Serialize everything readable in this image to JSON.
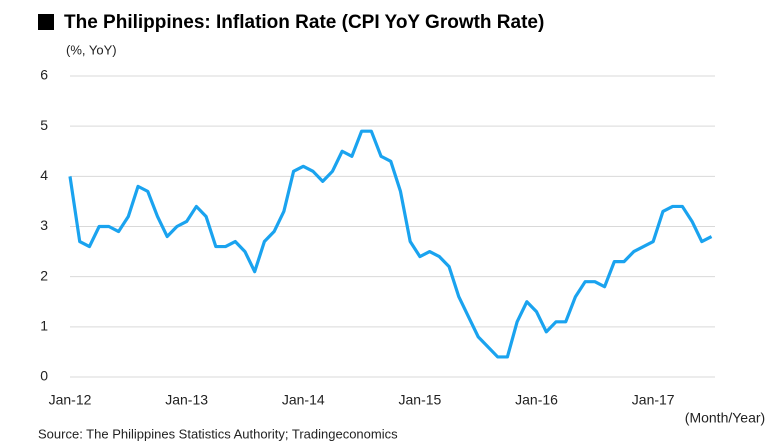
{
  "chart_data": {
    "type": "line",
    "title": "The Philippines: Inflation Rate (CPI YoY Growth Rate)",
    "y_label": "(%, YoY)",
    "x_label": "(Month/Year)",
    "source": "Source: The Philippines Statistics Authority;  Tradingeconomics",
    "categories": [
      "Jan-12",
      null,
      null,
      null,
      null,
      null,
      null,
      null,
      null,
      null,
      null,
      null,
      "Jan-13",
      null,
      null,
      null,
      null,
      null,
      null,
      null,
      null,
      null,
      null,
      null,
      "Jan-14",
      null,
      null,
      null,
      null,
      null,
      null,
      null,
      null,
      null,
      null,
      null,
      "Jan-15",
      null,
      null,
      null,
      null,
      null,
      null,
      null,
      null,
      null,
      null,
      null,
      "Jan-16",
      null,
      null,
      null,
      null,
      null,
      null,
      null,
      null,
      null,
      null,
      null,
      "Jan-17",
      null,
      null,
      null,
      null,
      null,
      null
    ],
    "series": [
      {
        "name": "Inflation Rate",
        "color": "#1aa3ef",
        "values": [
          4.0,
          2.7,
          2.6,
          3.0,
          3.0,
          2.9,
          3.2,
          3.8,
          3.7,
          3.2,
          2.8,
          3.0,
          3.1,
          3.4,
          3.2,
          2.6,
          2.6,
          2.7,
          2.5,
          2.1,
          2.7,
          2.9,
          3.3,
          4.1,
          4.2,
          4.1,
          3.9,
          4.1,
          4.5,
          4.4,
          4.9,
          4.9,
          4.4,
          4.3,
          3.7,
          2.7,
          2.4,
          2.5,
          2.4,
          2.2,
          1.6,
          1.2,
          0.8,
          0.6,
          0.4,
          0.4,
          1.1,
          1.5,
          1.3,
          0.9,
          1.1,
          1.1,
          1.6,
          1.9,
          1.9,
          1.8,
          2.3,
          2.3,
          2.5,
          2.6,
          2.7,
          3.3,
          3.4,
          3.4,
          3.1,
          2.7,
          2.8
        ]
      }
    ],
    "ylim": [
      0,
      6
    ],
    "yticks": [
      0,
      1,
      2,
      3,
      4,
      5,
      6
    ],
    "grid": true
  }
}
